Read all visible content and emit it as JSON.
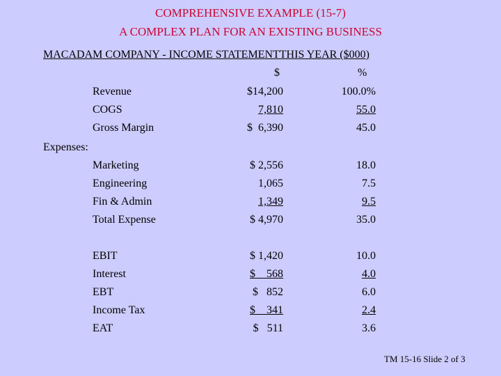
{
  "title_line1": "COMPREHENSIVE EXAMPLE (15-7)",
  "title_line2": "A COMPLEX PLAN FOR AN EXISTING BUSINESS",
  "heading": "MACADAM COMPANY - INCOME STATEMENTTHIS YEAR ($000)",
  "col_dollar": "$",
  "col_pct": "%",
  "expenses_label": "Expenses:",
  "rows": [
    {
      "label": "Revenue",
      "dollar": "$14,200",
      "pct": "100.0%"
    },
    {
      "label": "COGS",
      "dollar": "7,810",
      "pct": "55.0"
    },
    {
      "label": "Gross Margin",
      "dollar": "$  6,390",
      "pct": "45.0"
    },
    {
      "label": "Marketing",
      "dollar": "$ 2,556",
      "pct": "18.0"
    },
    {
      "label": "Engineering",
      "dollar": "1,065",
      "pct": "7.5"
    },
    {
      "label": "Fin & Admin",
      "dollar": "1,349",
      "pct": "9.5"
    },
    {
      "label": "Total Expense",
      "dollar": "$ 4,970",
      "pct": "35.0"
    },
    {
      "label": "EBIT",
      "dollar": "$ 1,420",
      "pct": "10.0"
    },
    {
      "label": "Interest",
      "dollar": "$    568",
      "pct": "4.0"
    },
    {
      "label": "EBT",
      "dollar": "$   852",
      "pct": "6.0"
    },
    {
      "label": "Income Tax",
      "dollar": "$    341",
      "pct": "2.4"
    },
    {
      "label": "EAT",
      "dollar": "$   511",
      "pct": "3.6"
    }
  ],
  "footer": "TM 15-16 Slide 2 of 3"
}
